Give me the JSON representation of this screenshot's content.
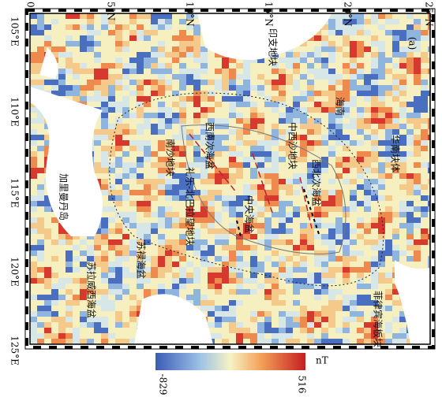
{
  "map": {
    "panel_label": "(a)",
    "lat_labels": [
      "0°",
      "5°N",
      "10°N",
      "15°N",
      "20°N",
      "25°N"
    ],
    "lon_labels": [
      "105°E",
      "110°E",
      "115°E",
      "120°E",
      "125°E"
    ],
    "regions": [
      "印支地块",
      "海南",
      "华南块体",
      "南沙地块",
      "西南次海盆",
      "中西沙地块",
      "西北次海盆",
      "礼乐-北巴拉望地块",
      "中央海盆",
      "加里曼丹岛",
      "苏禄海盆",
      "苏拉威西海盆",
      "菲律宾海板块"
    ],
    "colorbar": {
      "min": -829,
      "max": 516,
      "unit": "nT"
    }
  }
}
